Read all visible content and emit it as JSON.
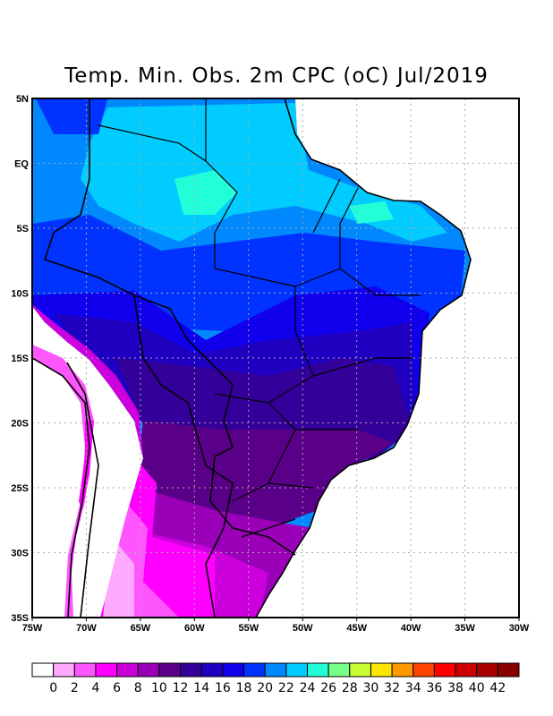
{
  "title": "Temp. Min. Obs. 2m CPC (oC) Jul/2019",
  "map": {
    "lon_range": [
      -75,
      -30
    ],
    "lat_range": [
      -35,
      5
    ],
    "lon_ticks": [
      "75W",
      "70W",
      "65W",
      "60W",
      "55W",
      "50W",
      "45W",
      "40W",
      "35W",
      "30W"
    ],
    "lat_ticks": [
      "5N",
      "EQ",
      "5S",
      "10S",
      "15S",
      "20S",
      "25S",
      "30S",
      "35S"
    ],
    "grid": true
  },
  "colorbar": {
    "labels": [
      "0",
      "2",
      "4",
      "6",
      "8",
      "10",
      "12",
      "14",
      "16",
      "18",
      "20",
      "22",
      "24",
      "26",
      "28",
      "30",
      "32",
      "34",
      "36",
      "38",
      "40",
      "42"
    ],
    "colors": [
      "#ffffff",
      "#ffaaff",
      "#ff55ff",
      "#ff00ff",
      "#cc00dd",
      "#9900b8",
      "#5a0088",
      "#330099",
      "#2000c0",
      "#1000ee",
      "#0033ff",
      "#0088ff",
      "#00ccff",
      "#22ffd8",
      "#77ff88",
      "#c8ff33",
      "#ffe600",
      "#ff9900",
      "#ff4400",
      "#ff0000",
      "#cc0000",
      "#aa0000",
      "#880000"
    ]
  }
}
